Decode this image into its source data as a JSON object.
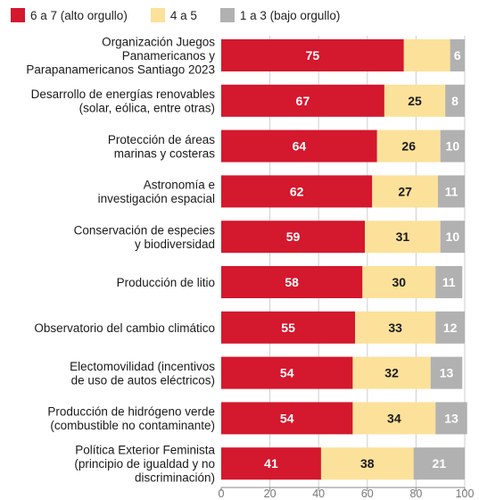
{
  "colors": {
    "high": "#d4182d",
    "mid": "#fce19a",
    "low": "#b1b1b1",
    "grid": "#cfcfcf",
    "axis": "#8a8a8a"
  },
  "chart_data": {
    "type": "bar",
    "orientation": "horizontal",
    "stacked": true,
    "xlim": [
      0,
      100
    ],
    "xticks": [
      0,
      20,
      40,
      60,
      80,
      100
    ],
    "legend_position": "top-left",
    "grid": true,
    "categories": [
      [
        "Organización Juegos",
        "Panamericanos y",
        "Parapanamericanos Santiago 2023"
      ],
      [
        "Desarrollo de energías renovables",
        "(solar, eólica, entre otras)"
      ],
      [
        "Protección de áreas",
        "marinas y costeras"
      ],
      [
        "Astronomía e",
        "investigación espacial"
      ],
      [
        "Conservación de especies",
        "y biodiversidad"
      ],
      [
        "Producción de litio"
      ],
      [
        "Observatorio del cambio climático"
      ],
      [
        "Electomovilidad (incentivos",
        "de uso de autos eléctricos)"
      ],
      [
        "Producción de hidrógeno verde",
        "(combustible no contaminante)"
      ],
      [
        "Política Exterior Feminista",
        "(principio de igualdad y no",
        "discriminación)"
      ]
    ],
    "series": [
      {
        "name": "6 a 7 (alto orgullo)",
        "color": "#d4182d",
        "values": [
          75,
          67,
          64,
          62,
          59,
          58,
          55,
          54,
          54,
          41
        ]
      },
      {
        "name": "4 a 5",
        "color": "#fce19a",
        "values": [
          19,
          25,
          26,
          27,
          31,
          30,
          33,
          32,
          34,
          38
        ]
      },
      {
        "name": "1 a 3 (bajo orgullo)",
        "color": "#b1b1b1",
        "values": [
          6,
          8,
          10,
          11,
          10,
          11,
          12,
          13,
          13,
          21
        ]
      }
    ],
    "labels": [
      [
        "75",
        "",
        "6"
      ],
      [
        "67",
        "25",
        "8"
      ],
      [
        "64",
        "26",
        "10"
      ],
      [
        "62",
        "27",
        "11"
      ],
      [
        "59",
        "31",
        "10"
      ],
      [
        "58",
        "30",
        "11"
      ],
      [
        "55",
        "33",
        "12"
      ],
      [
        "54",
        "32",
        "13"
      ],
      [
        "54",
        "34",
        "13"
      ],
      [
        "41",
        "38",
        "21"
      ]
    ]
  }
}
